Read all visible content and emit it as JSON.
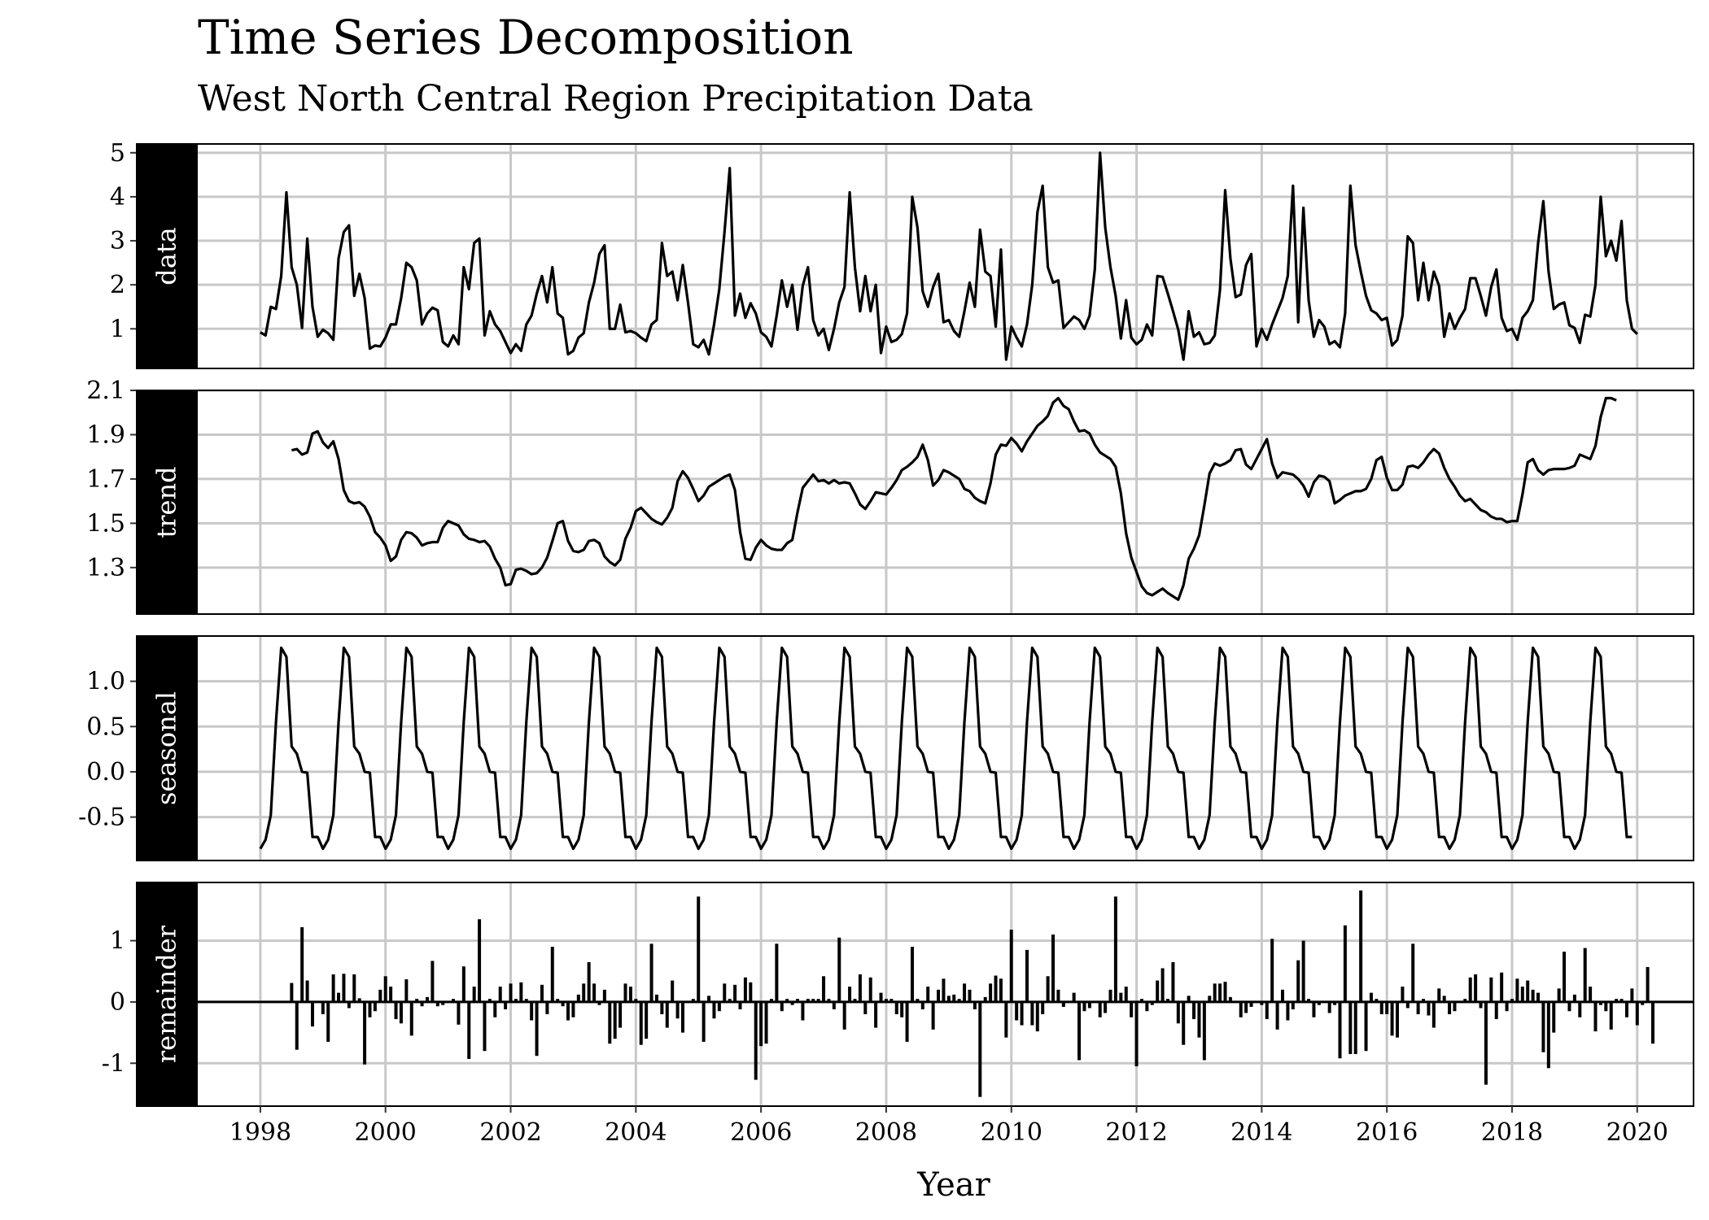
{
  "title": "Time Series Decomposition",
  "subtitle": "West North Central Region Precipitation Data",
  "chart_data": {
    "type": "line",
    "xlabel": "Year",
    "x_ticks": [
      1998,
      2000,
      2002,
      2004,
      2006,
      2008,
      2010,
      2012,
      2014,
      2016,
      2018,
      2020
    ],
    "x_range": [
      1997.0,
      2020.9
    ],
    "start": 1998.0,
    "step": 0.08333333,
    "grid": true,
    "panels": [
      {
        "name": "data",
        "type": "line",
        "ylim": [
          0.1,
          5.2
        ],
        "y_ticks": [
          1,
          2,
          3,
          4,
          5
        ],
        "y_tick_labels": [
          "1",
          "2",
          "3",
          "4",
          "5"
        ],
        "values": [
          0.92,
          0.85,
          1.5,
          1.45,
          2.2,
          4.1,
          2.4,
          2.0,
          1.02,
          3.05,
          1.5,
          0.82,
          0.98,
          0.9,
          0.75,
          2.6,
          3.2,
          3.35,
          1.75,
          2.25,
          1.7,
          0.55,
          0.62,
          0.6,
          0.8,
          1.1,
          1.1,
          1.7,
          2.5,
          2.4,
          2.1,
          1.1,
          1.35,
          1.48,
          1.42,
          0.7,
          0.6,
          0.85,
          0.65,
          2.4,
          1.9,
          2.95,
          3.05,
          0.85,
          1.4,
          1.1,
          0.95,
          0.7,
          0.45,
          0.65,
          0.5,
          1.1,
          1.3,
          1.8,
          2.2,
          1.6,
          2.4,
          1.35,
          1.25,
          0.42,
          0.5,
          0.8,
          0.9,
          1.6,
          2.05,
          2.7,
          2.9,
          1.0,
          1.0,
          1.55,
          0.92,
          0.95,
          0.9,
          0.8,
          0.72,
          1.1,
          1.2,
          2.95,
          2.2,
          2.3,
          1.65,
          2.45,
          1.6,
          0.65,
          0.58,
          0.75,
          0.42,
          1.1,
          1.9,
          3.2,
          4.65,
          1.3,
          1.8,
          1.25,
          1.58,
          1.35,
          0.92,
          0.82,
          0.6,
          1.3,
          2.1,
          1.5,
          2.0,
          0.98,
          1.98,
          2.4,
          1.2,
          0.85,
          1.0,
          0.52,
          1.0,
          1.6,
          1.95,
          4.1,
          2.4,
          1.4,
          2.2,
          1.4,
          2.0,
          0.45,
          1.05,
          0.7,
          0.75,
          0.88,
          1.35,
          4.0,
          3.3,
          1.85,
          1.5,
          1.95,
          2.25,
          1.15,
          1.2,
          0.95,
          0.82,
          1.4,
          2.05,
          1.5,
          3.25,
          2.3,
          2.2,
          1.05,
          2.8,
          0.3,
          1.05,
          0.8,
          0.6,
          1.1,
          2.0,
          3.65,
          4.25,
          2.4,
          2.05,
          2.1,
          1.02,
          1.15,
          1.28,
          1.2,
          1.0,
          1.3,
          2.35,
          5.0,
          3.3,
          2.4,
          1.75,
          0.78,
          1.65,
          0.8,
          0.65,
          0.75,
          1.1,
          0.85,
          2.2,
          2.18,
          1.8,
          1.4,
          0.98,
          0.3,
          1.4,
          0.82,
          0.92,
          0.65,
          0.68,
          0.85,
          1.88,
          4.15,
          2.6,
          1.72,
          1.78,
          2.45,
          2.7,
          0.6,
          1.0,
          0.75,
          1.1,
          1.4,
          1.7,
          2.2,
          4.25,
          1.15,
          3.75,
          1.65,
          0.82,
          1.2,
          1.05,
          0.65,
          0.72,
          0.58,
          1.35,
          4.25,
          2.9,
          2.3,
          1.75,
          1.42,
          1.35,
          1.2,
          1.25,
          0.62,
          0.75,
          1.3,
          3.1,
          2.95,
          1.65,
          2.5,
          1.65,
          2.3,
          1.98,
          0.82,
          1.35,
          1.0,
          1.25,
          1.45,
          2.15,
          2.15,
          1.75,
          1.3,
          1.95,
          2.35,
          1.25,
          0.95,
          1.0,
          0.75,
          1.25,
          1.4,
          1.65,
          2.95,
          3.9,
          2.3,
          1.45,
          1.55,
          1.6,
          1.08,
          1.02,
          0.68,
          1.32,
          1.28,
          2.0,
          4.0,
          2.65,
          3.0,
          2.55,
          3.45,
          1.65,
          1.0,
          0.88
        ],
        "offset": 0
      },
      {
        "name": "trend",
        "type": "line",
        "ylim": [
          1.09,
          2.1
        ],
        "y_ticks": [
          1.3,
          1.5,
          1.7,
          1.9,
          2.1
        ],
        "y_tick_labels": [
          "1.3",
          "1.5",
          "1.7",
          "1.9",
          "2.1"
        ],
        "values": [
          1.83,
          1.835,
          1.81,
          1.82,
          1.905,
          1.915,
          1.865,
          1.84,
          1.87,
          1.79,
          1.65,
          1.6,
          1.59,
          1.595,
          1.575,
          1.53,
          1.46,
          1.435,
          1.4,
          1.33,
          1.35,
          1.425,
          1.46,
          1.455,
          1.435,
          1.4,
          1.41,
          1.415,
          1.415,
          1.48,
          1.51,
          1.5,
          1.49,
          1.45,
          1.43,
          1.425,
          1.415,
          1.42,
          1.395,
          1.34,
          1.3,
          1.22,
          1.225,
          1.29,
          1.295,
          1.285,
          1.27,
          1.275,
          1.3,
          1.345,
          1.42,
          1.5,
          1.51,
          1.42,
          1.375,
          1.37,
          1.38,
          1.42,
          1.425,
          1.41,
          1.35,
          1.325,
          1.31,
          1.335,
          1.43,
          1.48,
          1.555,
          1.57,
          1.545,
          1.52,
          1.505,
          1.495,
          1.525,
          1.57,
          1.69,
          1.735,
          1.705,
          1.655,
          1.6,
          1.625,
          1.665,
          1.68,
          1.695,
          1.71,
          1.72,
          1.65,
          1.46,
          1.34,
          1.335,
          1.39,
          1.425,
          1.4,
          1.385,
          1.38,
          1.38,
          1.41,
          1.425,
          1.55,
          1.66,
          1.69,
          1.72,
          1.69,
          1.695,
          1.68,
          1.695,
          1.68,
          1.685,
          1.68,
          1.635,
          1.585,
          1.565,
          1.6,
          1.64,
          1.635,
          1.63,
          1.66,
          1.695,
          1.74,
          1.755,
          1.775,
          1.8,
          1.855,
          1.785,
          1.67,
          1.695,
          1.74,
          1.73,
          1.715,
          1.7,
          1.655,
          1.645,
          1.615,
          1.6,
          1.59,
          1.68,
          1.81,
          1.855,
          1.85,
          1.885,
          1.86,
          1.825,
          1.87,
          1.905,
          1.94,
          1.96,
          1.985,
          2.045,
          2.065,
          2.03,
          2.015,
          1.96,
          1.915,
          1.92,
          1.905,
          1.855,
          1.82,
          1.805,
          1.79,
          1.755,
          1.635,
          1.455,
          1.345,
          1.28,
          1.215,
          1.185,
          1.175,
          1.19,
          1.205,
          1.185,
          1.17,
          1.155,
          1.22,
          1.34,
          1.385,
          1.445,
          1.58,
          1.725,
          1.77,
          1.76,
          1.77,
          1.785,
          1.83,
          1.835,
          1.765,
          1.745,
          1.79,
          1.835,
          1.88,
          1.77,
          1.705,
          1.73,
          1.725,
          1.72,
          1.7,
          1.67,
          1.62,
          1.685,
          1.715,
          1.71,
          1.69,
          1.59,
          1.605,
          1.625,
          1.635,
          1.645,
          1.645,
          1.655,
          1.7,
          1.785,
          1.8,
          1.705,
          1.65,
          1.65,
          1.675,
          1.755,
          1.76,
          1.75,
          1.775,
          1.81,
          1.835,
          1.815,
          1.75,
          1.7,
          1.665,
          1.625,
          1.6,
          1.61,
          1.585,
          1.56,
          1.55,
          1.53,
          1.52,
          1.52,
          1.505,
          1.51,
          1.51,
          1.63,
          1.775,
          1.79,
          1.74,
          1.72,
          1.74,
          1.745,
          1.745,
          1.745,
          1.75,
          1.76,
          1.81,
          1.8,
          1.79,
          1.85,
          1.98,
          2.065,
          2.065,
          2.055
        ],
        "offset": 6
      },
      {
        "name": "seasonal",
        "type": "line",
        "ylim": [
          -0.98,
          1.5
        ],
        "y_ticks": [
          -0.5,
          0.0,
          0.5,
          1.0
        ],
        "y_tick_labels": [
          "-0.5",
          "0.0",
          "0.5",
          "1.0"
        ],
        "pattern": [
          -0.85,
          -0.75,
          -0.48,
          0.55,
          1.37,
          1.27,
          0.28,
          0.2,
          0.0,
          -0.01,
          -0.72,
          -0.72
        ],
        "n": 264,
        "offset": 0
      },
      {
        "name": "remainder",
        "type": "bar",
        "ylim": [
          -1.7,
          1.95
        ],
        "y_ticks": [
          -1,
          0,
          1
        ],
        "y_tick_labels": [
          "-1",
          "0",
          "1"
        ],
        "values": [
          0.31,
          -0.78,
          1.22,
          0.35,
          -0.4,
          0.0,
          -0.2,
          -0.65,
          0.45,
          0.15,
          0.46,
          -0.1,
          0.45,
          0.06,
          -1.02,
          -0.25,
          -0.15,
          0.2,
          0.42,
          0.25,
          -0.28,
          -0.35,
          0.37,
          -0.55,
          0.05,
          -0.07,
          0.08,
          0.67,
          -0.07,
          -0.05,
          0.0,
          0.05,
          -0.37,
          0.58,
          -0.93,
          0.25,
          1.35,
          -0.8,
          0.05,
          -0.25,
          0.25,
          -0.12,
          0.3,
          0.05,
          0.32,
          0.05,
          -0.3,
          -0.88,
          0.28,
          -0.2,
          0.9,
          0.05,
          -0.07,
          -0.3,
          -0.25,
          0.12,
          0.3,
          0.65,
          0.3,
          -0.05,
          0.2,
          -0.68,
          -0.6,
          -0.42,
          0.3,
          0.25,
          0.05,
          -0.7,
          -0.6,
          0.95,
          0.12,
          -0.2,
          -0.42,
          0.35,
          -0.27,
          -0.5,
          0.0,
          0.05,
          1.72,
          -0.65,
          0.1,
          -0.27,
          -0.15,
          0.3,
          0.05,
          0.28,
          -0.12,
          0.4,
          0.32,
          -1.27,
          -0.72,
          -0.68,
          0.05,
          0.95,
          -0.15,
          0.05,
          -0.05,
          0.05,
          -0.3,
          0.05,
          0.05,
          0.05,
          0.42,
          0.05,
          -0.12,
          1.05,
          -0.45,
          0.25,
          0.05,
          0.45,
          -0.2,
          0.4,
          -0.42,
          0.15,
          0.05,
          0.05,
          -0.2,
          -0.25,
          -0.65,
          0.9,
          0.05,
          -0.12,
          0.25,
          -0.45,
          0.2,
          0.38,
          0.1,
          0.12,
          0.05,
          0.3,
          0.2,
          -0.12,
          -1.55,
          0.08,
          0.3,
          0.43,
          0.38,
          -0.58,
          1.18,
          -0.3,
          -0.38,
          0.85,
          -0.38,
          -0.48,
          -0.2,
          0.42,
          1.1,
          0.2,
          -0.08,
          0.0,
          0.15,
          -0.95,
          -0.15,
          -0.1,
          0.0,
          -0.25,
          -0.18,
          0.2,
          1.72,
          0.15,
          0.25,
          -0.25,
          -1.05,
          0.05,
          -0.15,
          -0.05,
          0.35,
          0.55,
          0.05,
          0.65,
          -0.35,
          -0.7,
          0.1,
          -0.28,
          -0.58,
          -0.95,
          0.1,
          0.3,
          0.3,
          0.33,
          0.08,
          0.0,
          -0.25,
          -0.18,
          -0.08,
          0.0,
          -0.05,
          -0.28,
          1.03,
          -0.45,
          0.2,
          -0.3,
          -0.12,
          0.68,
          1.0,
          0.05,
          -0.25,
          -0.05,
          0.0,
          -0.18,
          -0.05,
          -0.92,
          1.25,
          -0.85,
          -0.85,
          1.82,
          -0.8,
          0.15,
          0.05,
          -0.2,
          -0.2,
          -0.55,
          -0.58,
          0.25,
          -0.1,
          0.95,
          -0.2,
          0.05,
          -0.22,
          -0.42,
          0.22,
          0.1,
          -0.2,
          -0.15,
          0.0,
          0.05,
          0.4,
          0.45,
          -0.1,
          -1.35,
          0.4,
          -0.28,
          0.48,
          -0.15,
          0.05,
          0.38,
          0.25,
          0.35,
          0.2,
          0.15,
          -0.82,
          -1.08,
          -0.5,
          0.22,
          0.82,
          -0.15,
          0.12,
          -0.25,
          0.88,
          0.25,
          -0.48,
          -0.05,
          -0.15,
          -0.45,
          0.05,
          0.05,
          -0.25,
          0.22,
          -0.38,
          -0.05,
          0.57,
          -0.68
        ],
        "offset": 6
      }
    ]
  }
}
